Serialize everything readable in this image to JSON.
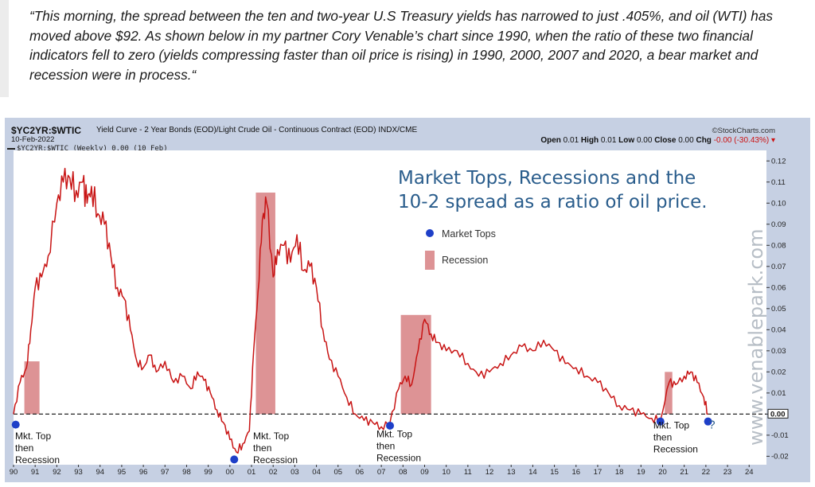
{
  "quote": {
    "text": "“This morning, the spread between the ten and two-year U.S Treasury yields has narrowed to just .405%, and oil (WTI) has moved above $92. As shown below in my partner Cory Venable’s chart since 1990, when the ratio of these two financial indicators fell to zero (yields compressing faster than oil price is rising) in 1990, 2000, 2007 and 2020, a bear market and recession were in process.“"
  },
  "header": {
    "symbol": "$YC2YR:$WTIC",
    "description": "Yield Curve - 2 Year Bonds (EOD)/Light Crude Oil - Continuous Contract (EOD) INDX/CME",
    "date": "10-Feb-2022",
    "source": "©StockCharts.com",
    "open_label": "Open",
    "open": "0.01",
    "high_label": "High",
    "high": "0.01",
    "low_label": "Low",
    "low": "0.00",
    "close_label": "Close",
    "close": "0.00",
    "chg_label": "Chg",
    "chg": "-0.00 (-30.43%)",
    "chg_arrow": "▾",
    "legend": "$YC2YR:$WTIC (Weekly) 0.00 (10 Feb)"
  },
  "colors": {
    "line": "#c81414",
    "recession": "#d4787a",
    "dot": "#1e3fc8",
    "title": "#2a5d8c",
    "plot_bg": "#ffffff",
    "frame": "#c6d0e3"
  },
  "chart_data": {
    "type": "line",
    "title": "Market Tops, Recessions and the 10-2 spread as a ratio of oil price.",
    "title_lines": [
      "Market Tops, Recessions and the",
      "10-2 spread as a ratio of oil price."
    ],
    "legend": [
      {
        "type": "dot",
        "label": "Market Tops"
      },
      {
        "type": "rect",
        "label": "Recession"
      }
    ],
    "watermark": "www.venablepark.com",
    "xlim": [
      1990,
      2024.8
    ],
    "ylim": [
      -0.024,
      0.125
    ],
    "x_ticks": [
      "90",
      "91",
      "92",
      "93",
      "94",
      "95",
      "96",
      "97",
      "98",
      "99",
      "00",
      "01",
      "02",
      "03",
      "04",
      "05",
      "06",
      "07",
      "08",
      "09",
      "10",
      "11",
      "12",
      "13",
      "14",
      "15",
      "16",
      "17",
      "18",
      "19",
      "20",
      "21",
      "22",
      "23",
      "24"
    ],
    "y_ticks": [
      0.12,
      0.11,
      0.1,
      0.09,
      0.08,
      0.07,
      0.06,
      0.05,
      0.04,
      0.03,
      0.02,
      0.01,
      0.0,
      -0.01,
      -0.02
    ],
    "y_tick_labels": [
      "0.12",
      "0.11",
      "0.10",
      "0.09",
      "0.08",
      "0.07",
      "0.06",
      "0.05",
      "0.04",
      "0.03",
      "0.02",
      "0.01",
      "0.00",
      "-0.01",
      "-0.02"
    ],
    "current_value_label": "0.00",
    "recessions": [
      {
        "start": 1990.5,
        "end": 1991.2,
        "top": 0.025
      },
      {
        "start": 2001.2,
        "end": 2002.1,
        "top": 0.105
      },
      {
        "start": 2007.9,
        "end": 2009.3,
        "top": 0.047
      },
      {
        "start": 2020.1,
        "end": 2020.45,
        "top": 0.02
      }
    ],
    "market_tops": [
      {
        "x": 1990.1,
        "y": -0.005
      },
      {
        "x": 2000.2,
        "y": -0.0215
      },
      {
        "x": 2007.4,
        "y": -0.0055
      },
      {
        "x": 2019.9,
        "y": -0.0035
      },
      {
        "x": 2022.1,
        "y": -0.0035
      }
    ],
    "annotations": [
      {
        "lines": [
          "Mkt. Top",
          "then",
          "Recession"
        ],
        "x": 1990,
        "y": -0.007
      },
      {
        "lines": [
          "Mkt. Top",
          "then",
          "Recession"
        ],
        "x": 2001.0,
        "y": -0.007
      },
      {
        "lines": [
          "Mkt. Top",
          "then",
          "Recession"
        ],
        "x": 2006.7,
        "y": -0.006
      },
      {
        "lines": [
          "Mkt. Top",
          "then",
          "Recession"
        ],
        "x": 2019.5,
        "y": -0.002
      },
      {
        "lines": [
          "?"
        ],
        "x": 2022.05,
        "y": -0.002
      }
    ],
    "series": [
      {
        "name": "$YC2YR:$WTIC (Weekly)",
        "x": [
          1990.0,
          1990.3,
          1990.6,
          1990.8,
          1991.0,
          1991.3,
          1991.6,
          1992.0,
          1992.3,
          1992.6,
          1992.9,
          1993.2,
          1993.4,
          1993.6,
          1993.9,
          1994.2,
          1994.5,
          1994.8,
          1995.1,
          1995.4,
          1995.7,
          1996.0,
          1996.3,
          1996.6,
          1997.0,
          1997.4,
          1997.8,
          1998.2,
          1998.5,
          1998.8,
          1999.1,
          1999.4,
          1999.7,
          2000.0,
          2000.3,
          2000.6,
          2000.9,
          2001.1,
          2001.3,
          2001.5,
          2001.7,
          2002.0,
          2002.2,
          2002.5,
          2002.8,
          2003.1,
          2003.4,
          2003.7,
          2004.0,
          2004.3,
          2004.6,
          2005.0,
          2005.4,
          2005.8,
          2006.2,
          2006.6,
          2007.0,
          2007.4,
          2007.8,
          2008.1,
          2008.4,
          2008.7,
          2009.0,
          2009.3,
          2009.6,
          2010.0,
          2010.5,
          2011.0,
          2011.5,
          2012.0,
          2012.5,
          2013.0,
          2013.5,
          2014.0,
          2014.5,
          2015.0,
          2015.5,
          2016.0,
          2016.5,
          2017.0,
          2017.5,
          2018.0,
          2018.5,
          2019.0,
          2019.5,
          2019.9,
          2020.3,
          2020.6,
          2021.0,
          2021.3,
          2021.6,
          2021.9,
          2022.1
        ],
        "y": [
          0.0,
          0.015,
          0.022,
          0.04,
          0.06,
          0.065,
          0.075,
          0.1,
          0.11,
          0.112,
          0.106,
          0.11,
          0.1,
          0.108,
          0.095,
          0.09,
          0.075,
          0.06,
          0.055,
          0.04,
          0.025,
          0.022,
          0.028,
          0.02,
          0.025,
          0.015,
          0.018,
          0.012,
          0.02,
          0.016,
          0.01,
          0.002,
          -0.004,
          -0.012,
          -0.018,
          -0.014,
          -0.008,
          0.03,
          0.058,
          0.092,
          0.1,
          0.065,
          0.078,
          0.08,
          0.072,
          0.085,
          0.068,
          0.07,
          0.06,
          0.04,
          0.026,
          0.018,
          0.008,
          0.0,
          -0.003,
          -0.004,
          -0.006,
          -0.004,
          0.012,
          0.018,
          0.014,
          0.03,
          0.045,
          0.038,
          0.034,
          0.03,
          0.03,
          0.024,
          0.018,
          0.02,
          0.024,
          0.028,
          0.032,
          0.03,
          0.035,
          0.03,
          0.024,
          0.022,
          0.018,
          0.015,
          0.01,
          0.004,
          0.002,
          0.0,
          -0.002,
          -0.003,
          0.015,
          0.014,
          0.018,
          0.02,
          0.015,
          0.008,
          0.0
        ]
      }
    ]
  }
}
